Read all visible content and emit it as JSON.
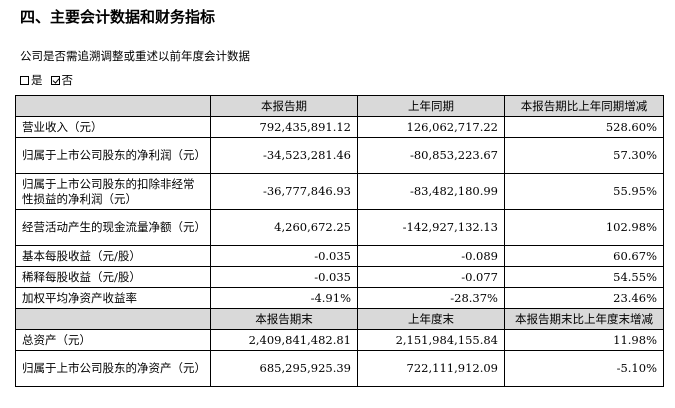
{
  "section": {
    "title": "四、主要会计数据和财务指标"
  },
  "question": {
    "text": "公司是否需追溯调整或重述以前年度会计数据",
    "options": [
      {
        "label": "是",
        "checked": false
      },
      {
        "label": "否",
        "checked": true
      }
    ]
  },
  "table": {
    "header1": [
      "",
      "本报告期",
      "上年同期",
      "本报告期比上年同期增减"
    ],
    "rows1": [
      {
        "label": "营业收入（元）",
        "current": "792,435,891.12",
        "prior": "126,062,717.22",
        "change": "528.60%"
      },
      {
        "label": "归属于上市公司股东的净利润（元）",
        "current": "-34,523,281.46",
        "prior": "-80,853,223.67",
        "change": "57.30%"
      },
      {
        "label": "归属于上市公司股东的扣除非经常性损益的净利润（元）",
        "current": "-36,777,846.93",
        "prior": "-83,482,180.99",
        "change": "55.95%"
      },
      {
        "label": "经营活动产生的现金流量净额（元）",
        "current": "4,260,672.25",
        "prior": "-142,927,132.13",
        "change": "102.98%"
      },
      {
        "label": "基本每股收益（元/股）",
        "current": "-0.035",
        "prior": "-0.089",
        "change": "60.67%"
      },
      {
        "label": "稀释每股收益（元/股）",
        "current": "-0.035",
        "prior": "-0.077",
        "change": "54.55%"
      },
      {
        "label": "加权平均净资产收益率",
        "current": "-4.91%",
        "prior": "-28.37%",
        "change": "23.46%"
      }
    ],
    "header2": [
      "",
      "本报告期末",
      "上年度末",
      "本报告期末比上年度末增减"
    ],
    "rows2": [
      {
        "label": "总资产（元）",
        "current": "2,409,841,482.81",
        "prior": "2,151,984,155.84",
        "change": "11.98%"
      },
      {
        "label": "归属于上市公司股东的净资产（元）",
        "current": "685,295,925.39",
        "prior": "722,111,912.09",
        "change": "-5.10%"
      }
    ]
  }
}
